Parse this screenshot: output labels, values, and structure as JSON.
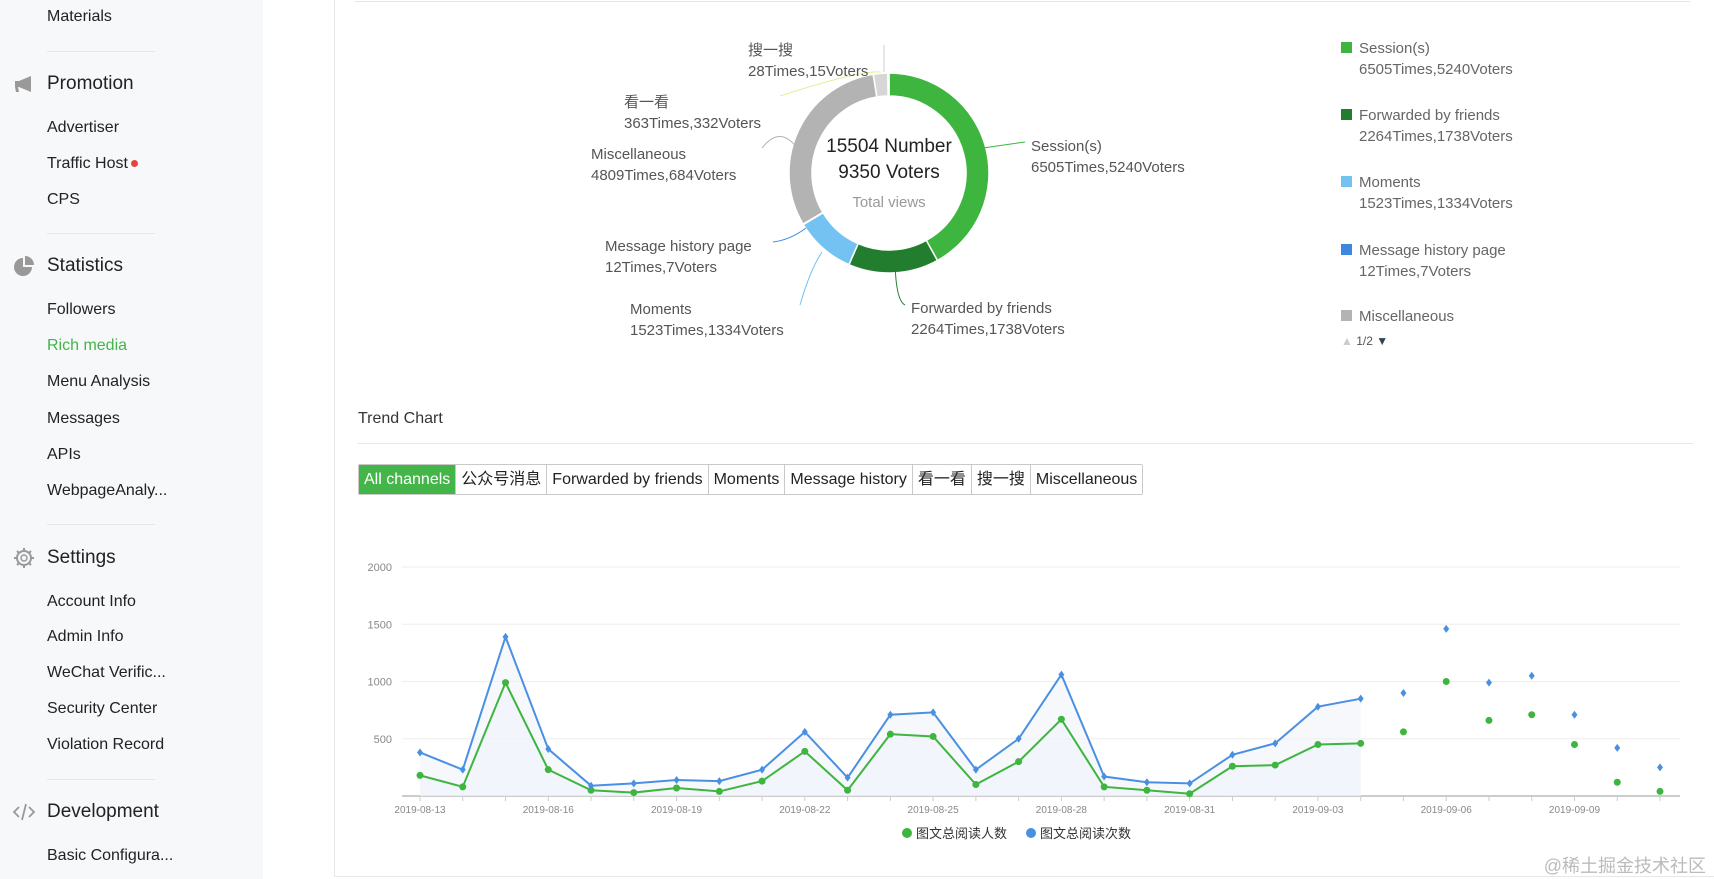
{
  "sidebar": {
    "materials": "Materials",
    "promotion": {
      "title": "Promotion",
      "items": [
        "Advertiser",
        "Traffic Host",
        "CPS"
      ]
    },
    "statistics": {
      "title": "Statistics",
      "items": [
        "Followers",
        "Rich media",
        "Menu Analysis",
        "Messages",
        "APIs",
        "WebpageAnaly..."
      ],
      "active": "Rich media"
    },
    "settings": {
      "title": "Settings",
      "items": [
        "Account Info",
        "Admin Info",
        "WeChat Verific...",
        "Security Center",
        "Violation Record"
      ]
    },
    "development": {
      "title": "Development",
      "items": [
        "Basic Configura..."
      ]
    }
  },
  "donut": {
    "center_line1": "15504 Number",
    "center_line2": "9350 Voters",
    "center_caption": "Total views",
    "slices": [
      {
        "name": "Session(s)",
        "value": 6505,
        "detail": "6505Times,5240Voters",
        "color": "#3db53f"
      },
      {
        "name": "Forwarded by friends",
        "value": 2264,
        "detail": "2264Times,1738Voters",
        "color": "#237d2f"
      },
      {
        "name": "Moments",
        "value": 1523,
        "detail": "1523Times,1334Voters",
        "color": "#73c2f1"
      },
      {
        "name": "Message history page",
        "value": 12,
        "detail": "12Times,7Voters",
        "color": "#3e87e0"
      },
      {
        "name": "Miscellaneous",
        "value": 4809,
        "detail": "4809Times,684Voters",
        "color": "#b3b3b3"
      },
      {
        "name": "看一看",
        "value": 363,
        "detail": "363Times,332Voters",
        "color": "#d6d6d6"
      },
      {
        "name": "搜一搜",
        "value": 28,
        "detail": "28Times,15Voters",
        "color": "#e8eb9a"
      }
    ],
    "legend_pager": "1/2"
  },
  "trend": {
    "title": "Trend Chart",
    "tabs": [
      "All channels",
      "公众号消息",
      "Forwarded by friends",
      "Moments",
      "Message history",
      "看一看",
      "搜一搜",
      "Miscellaneous"
    ],
    "active_tab": "All channels"
  },
  "chart_data": {
    "type": "line",
    "x": [
      "2019-08-13",
      "2019-08-14",
      "2019-08-15",
      "2019-08-16",
      "2019-08-17",
      "2019-08-18",
      "2019-08-19",
      "2019-08-20",
      "2019-08-21",
      "2019-08-22",
      "2019-08-23",
      "2019-08-24",
      "2019-08-25",
      "2019-08-26",
      "2019-08-27",
      "2019-08-28",
      "2019-08-29",
      "2019-08-30",
      "2019-08-31",
      "2019-09-01",
      "2019-09-02",
      "2019-09-03",
      "2019-09-04",
      "2019-09-05",
      "2019-09-06",
      "2019-09-07",
      "2019-09-08",
      "2019-09-09",
      "2019-09-10",
      "2019-09-11"
    ],
    "xtick_labels": [
      "2019-08-13",
      "2019-08-16",
      "2019-08-19",
      "2019-08-22",
      "2019-08-25",
      "2019-08-28",
      "2019-08-31",
      "2019-09-03",
      "2019-09-06",
      "2019-09-09"
    ],
    "ylim": [
      0,
      2000
    ],
    "yticks": [
      "500",
      "1000",
      "1500",
      "2000"
    ],
    "connected_points": 23,
    "series": [
      {
        "name": "图文总阅读人数",
        "color": "#3db53f",
        "values": [
          180,
          80,
          990,
          230,
          50,
          30,
          70,
          40,
          130,
          390,
          50,
          540,
          520,
          100,
          300,
          670,
          80,
          50,
          20,
          260,
          270,
          450,
          460,
          560,
          1000,
          660,
          710,
          450,
          120,
          40
        ]
      },
      {
        "name": "图文总阅读次数",
        "color": "#4a90e2",
        "values": [
          380,
          230,
          1390,
          410,
          90,
          110,
          140,
          130,
          230,
          560,
          160,
          710,
          730,
          230,
          500,
          1060,
          170,
          120,
          110,
          360,
          460,
          780,
          850,
          900,
          1460,
          990,
          1050,
          710,
          420,
          250
        ]
      }
    ],
    "legend": "bottom"
  },
  "watermark": "@稀土掘金技术社区"
}
